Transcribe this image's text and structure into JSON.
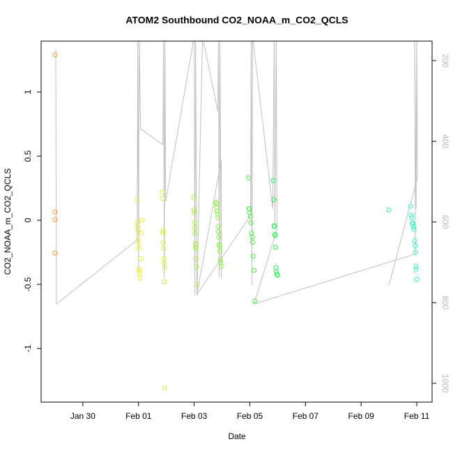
{
  "chart_data": {
    "type": "scatter",
    "title": "ATOM2 Southbound CO2_NOAA_m_CO2_QCLS",
    "xlabel": "Date",
    "ylabel": "CO2_NOAA_m_CO2_QCLS",
    "xlim": [
      28.5,
      42.55
    ],
    "ylim": [
      -1.418,
      1.397
    ],
    "y2lim": [
      1046.6,
      151.7
    ],
    "xticks": [
      {
        "value": 30,
        "label": "Jan 30"
      },
      {
        "value": 32,
        "label": "Feb 01"
      },
      {
        "value": 34,
        "label": "Feb 03"
      },
      {
        "value": 36,
        "label": "Feb 05"
      },
      {
        "value": 38,
        "label": "Feb 07"
      },
      {
        "value": 40,
        "label": "Feb 09"
      },
      {
        "value": 42,
        "label": "Feb 11"
      }
    ],
    "yticks": [
      -1.0,
      -0.5,
      0.0,
      0.5,
      1.0
    ],
    "y2ticks": [
      200,
      400,
      600,
      800,
      1000
    ],
    "series": [
      {
        "type": "line",
        "axis": "y2",
        "color": "#c0c0c0",
        "x": [
          29.025,
          29.05,
          31.95,
          31.975,
          32.0,
          32.025,
          32.075,
          32.875,
          32.9,
          32.925,
          32.95,
          32.975,
          34.0,
          34.025,
          34.05,
          34.1,
          34.3,
          34.85,
          34.875,
          34.9,
          34.925,
          34.975,
          34.975,
          34.1,
          36.025,
          36.05,
          36.075,
          36.1,
          36.825,
          36.875,
          36.9,
          36.95,
          36.975,
          36.15,
          41.95,
          41.925,
          41.975,
          42.0,
          42.025,
          41.0
        ],
        "values": [
          170.7,
          803.4,
          644.8,
          140,
          722.4,
          140,
          369.0,
          408.6,
          140,
          739.7,
          140,
          550.0,
          140,
          782.8,
          140,
          782.8,
          140,
          325.9,
          140,
          736.2,
          140,
          739.7,
          446.6,
          779.3,
          584.5,
          140,
          756.9,
          140,
          567.2,
          140,
          601.7,
          140,
          619.0,
          803.4,
          679.3,
          140,
          567.2,
          140,
          489.7,
          756.9
        ]
      },
      {
        "color": "#f0a030",
        "x": [
          29.0,
          29.0,
          29.0,
          29.0
        ],
        "values": [
          1.29,
          0.065,
          0.005,
          -0.255
        ]
      },
      {
        "color": "#e8f03a",
        "x": [
          31.95,
          31.96,
          31.97,
          31.98,
          31.99,
          32.0,
          32.01,
          32.02,
          32.03,
          32.05,
          32.06,
          32.08,
          32.1,
          32.12
        ],
        "values": [
          0.16,
          -0.02,
          -0.05,
          -0.08,
          -0.15,
          -0.18,
          -0.22,
          -0.38,
          -0.4,
          -0.42,
          -0.45,
          -0.3,
          -0.1,
          0.0
        ]
      },
      {
        "color": "#d4f038",
        "x": [
          32.85,
          32.86,
          32.87,
          32.88,
          32.89,
          32.9,
          32.91,
          32.92,
          32.93,
          32.94,
          32.95
        ],
        "values": [
          0.22,
          0.17,
          -0.08,
          -0.1,
          -0.17,
          -0.22,
          -0.3,
          -0.33,
          -0.48,
          -1.31,
          -0.37
        ]
      },
      {
        "color": "#a8f040",
        "x": [
          33.98,
          33.99,
          34.0,
          34.01,
          34.02,
          34.03,
          34.04,
          34.05,
          34.06,
          34.07,
          34.08,
          34.1
        ],
        "values": [
          0.18,
          0.08,
          0.06,
          -0.02,
          -0.06,
          -0.1,
          -0.18,
          -0.21,
          -0.22,
          -0.3,
          -0.36,
          -0.5
        ]
      },
      {
        "color": "#88f040",
        "x": [
          34.78,
          34.8,
          34.81,
          34.82,
          34.84,
          34.85,
          34.86,
          34.87,
          34.88,
          34.9,
          34.91,
          34.92,
          34.94,
          34.96,
          34.98
        ],
        "values": [
          0.14,
          0.13,
          0.1,
          0.07,
          0.05,
          0.02,
          -0.05,
          -0.09,
          -0.13,
          -0.19,
          -0.2,
          -0.24,
          -0.31,
          -0.33,
          -0.36
        ]
      },
      {
        "color": "#48f040",
        "x": [
          35.95,
          35.97,
          35.98,
          36.0,
          36.02,
          36.04,
          36.06,
          36.08,
          36.1,
          36.12,
          36.15,
          36.18
        ],
        "values": [
          0.33,
          0.09,
          0.09,
          0.06,
          0.03,
          -0.02,
          -0.1,
          -0.13,
          -0.17,
          -0.28,
          -0.39,
          -0.63
        ]
      },
      {
        "color": "#28f050",
        "x": [
          36.85,
          36.86,
          36.87,
          36.88,
          36.9,
          36.91,
          36.92,
          36.94,
          36.95,
          36.97,
          37.0
        ],
        "values": [
          0.31,
          0.16,
          -0.04,
          -0.05,
          -0.11,
          -0.12,
          -0.21,
          -0.37,
          -0.4,
          -0.42,
          -0.43
        ]
      },
      {
        "color": "#30f090",
        "x": [
          41.0
        ],
        "values": [
          0.08
        ]
      },
      {
        "color": "#30f0c0",
        "x": [
          41.78,
          41.8,
          41.82,
          41.84,
          41.86,
          41.88,
          41.9,
          41.92,
          41.94,
          41.96,
          41.97,
          41.98,
          42.0
        ],
        "values": [
          0.11,
          0.04,
          0.02,
          -0.02,
          -0.03,
          -0.05,
          -0.07,
          -0.16,
          -0.2,
          -0.25,
          -0.36,
          -0.38,
          -0.46
        ]
      }
    ]
  }
}
